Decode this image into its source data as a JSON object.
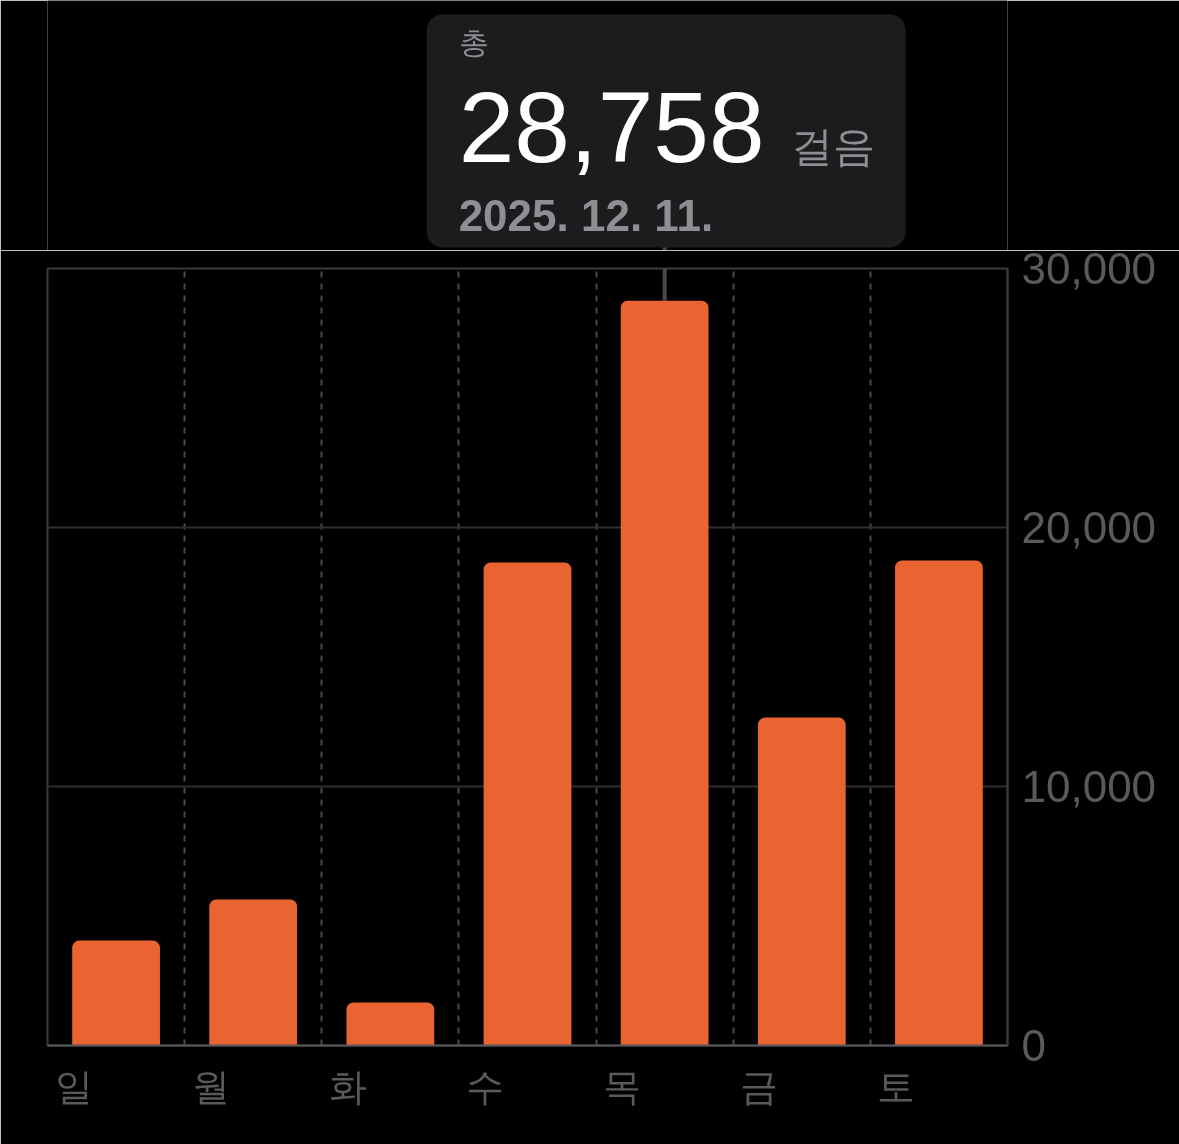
{
  "chart_data": {
    "type": "bar",
    "categories": [
      "일",
      "월",
      "화",
      "수",
      "목",
      "금",
      "토"
    ],
    "values": [
      4050,
      5640,
      1660,
      18650,
      28758,
      12660,
      18730
    ],
    "color": "#ea6432",
    "ylim": [
      0,
      30000
    ],
    "yticks": [
      0,
      {
        "value": 10000,
        "label": "10,000"
      },
      {
        "value": 20000,
        "label": "20,000"
      },
      {
        "value": 30000,
        "label": "30,000"
      }
    ],
    "grid": true,
    "annotations": [
      "총",
      {
        "text": "28,758",
        "x": "목",
        "y": 28758
      },
      "걸음",
      {
        "text": "2025. 12. 11.",
        "x": "목",
        "y": 28758
      }
    ]
  }
}
